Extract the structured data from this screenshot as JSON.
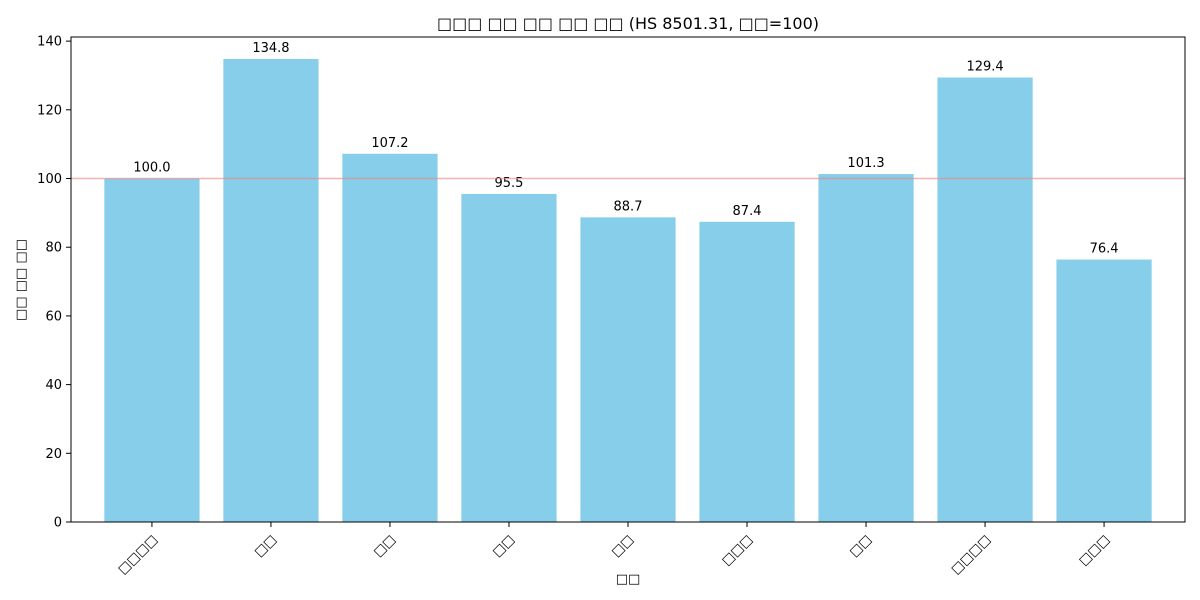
{
  "chart_data": {
    "type": "bar",
    "title": "□□□ □□ □□ □□ □□ (HS 8501.31, □□=100)",
    "xlabel": "□□",
    "ylabel": "□□ □□ □□",
    "categories": [
      "□□□□",
      "□□",
      "□□",
      "□□",
      "□□",
      "□□□",
      "□□",
      "□□□□",
      "□□□"
    ],
    "values": [
      100.0,
      134.8,
      107.2,
      95.5,
      88.7,
      87.4,
      101.3,
      129.4,
      76.4
    ],
    "data_labels": [
      "100.0",
      "134.8",
      "107.2",
      "95.5",
      "88.7",
      "87.4",
      "101.3",
      "129.4",
      "76.4"
    ],
    "ylim": [
      0,
      141.2
    ],
    "yticks": [
      0,
      20,
      40,
      60,
      80,
      100,
      120,
      140
    ],
    "reference_line": 100,
    "grid": false,
    "colors": {
      "bar": "#87ceeb",
      "reference_line": "#f08080"
    }
  }
}
